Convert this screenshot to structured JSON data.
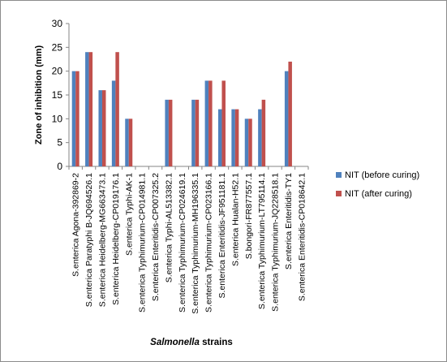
{
  "chart_data": {
    "type": "bar",
    "xlabel_italic": "Salmonella",
    "xlabel_rest": " strains",
    "ylabel": "Zone of inhibition (mm)",
    "ylim": [
      0,
      30
    ],
    "yticks": [
      0,
      5,
      10,
      15,
      20,
      25,
      30
    ],
    "grid": false,
    "legend_position": "right",
    "categories": [
      "S.enterica Agona-392869-2",
      "S.enterica Paratyphi B-JQ694526.1",
      "S.enterica Heidelberg-MG663473.1",
      "S.enterica Heidelberg-CP019176.1",
      "S.enterica Typhi-AK-1",
      "S.enterica Typhimurium-CP014981.1",
      "S.enterica Enteritidis-CP007325.2",
      "S.enterica Typhi-AL513382.1",
      "S.enterica Typhimurium-CP024619.1",
      "S.enterica Typhimurium-MH196335.1",
      "S.enterica Typhimurium-CP023166.1",
      "S.enterica Enteritidis-JF951181.1",
      "S.enterica Hualan-H52.1",
      "S.bongori-FR877557.1",
      "S.enterica Typhimurium-LT795114.1",
      "S.enterica Typhimurium-JQ228518.1",
      "S.enterica Enteritidis-TY1",
      "S.enterica Enteritidis-CP018642.1"
    ],
    "series": [
      {
        "name": "NIT (before curing)",
        "color": "#4f81bd",
        "values": [
          20,
          24,
          16,
          18,
          10,
          0,
          0,
          14,
          0,
          14,
          18,
          12,
          12,
          10,
          12,
          0,
          20,
          0
        ]
      },
      {
        "name": "NIT (after curing)",
        "color": "#c0504d",
        "values": [
          20,
          24,
          16,
          24,
          10,
          0,
          0,
          14,
          0,
          14,
          18,
          18,
          12,
          10,
          14,
          0,
          22,
          0
        ]
      }
    ]
  }
}
